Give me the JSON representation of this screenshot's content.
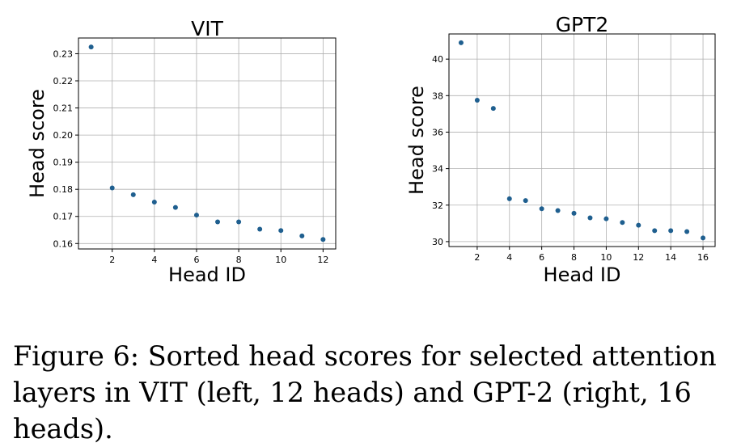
{
  "chart_data": [
    {
      "type": "scatter",
      "title": "VIT",
      "xlabel": "Head ID",
      "ylabel": "Head score",
      "x": [
        1,
        2,
        3,
        4,
        5,
        6,
        7,
        8,
        9,
        10,
        11,
        12
      ],
      "y": [
        0.2325,
        0.1805,
        0.178,
        0.1753,
        0.1733,
        0.1705,
        0.168,
        0.168,
        0.1653,
        0.1648,
        0.1628,
        0.1615
      ],
      "xticks": [
        2,
        4,
        6,
        8,
        10,
        12
      ],
      "yticks": [
        0.16,
        0.17,
        0.18,
        0.19,
        0.2,
        0.21,
        0.22,
        0.23
      ],
      "ytick_labels": [
        "0.16",
        "0.17",
        "0.18",
        "0.19",
        "0.20",
        "0.21",
        "0.22",
        "0.23"
      ],
      "xlim": [
        0.4,
        12.6
      ],
      "ylim": [
        0.158,
        0.2358
      ],
      "grid": true,
      "marker_color": "#1f5f8f"
    },
    {
      "type": "scatter",
      "title": "GPT2",
      "xlabel": "Head ID",
      "ylabel": "Head score",
      "x": [
        1,
        2,
        3,
        4,
        5,
        6,
        7,
        8,
        9,
        10,
        11,
        12,
        13,
        14,
        15,
        16
      ],
      "y": [
        40.9,
        37.75,
        37.3,
        32.35,
        32.25,
        31.8,
        31.7,
        31.55,
        31.3,
        31.25,
        31.05,
        30.9,
        30.6,
        30.6,
        30.55,
        30.2
      ],
      "xticks": [
        2,
        4,
        6,
        8,
        10,
        12,
        14,
        16
      ],
      "yticks": [
        30,
        32,
        34,
        36,
        38,
        40
      ],
      "ytick_labels": [
        "30",
        "32",
        "34",
        "36",
        "38",
        "40"
      ],
      "xlim": [
        0.25,
        16.75
      ],
      "ylim": [
        29.73,
        41.38
      ],
      "grid": true,
      "marker_color": "#1f5f8f"
    }
  ],
  "caption": "Figure 6: Sorted head scores for selected attention layers in VIT (left, 12 heads) and GPT-2 (right, 16 heads)."
}
